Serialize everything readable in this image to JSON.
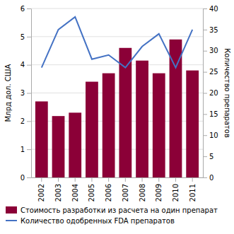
{
  "chart_data": {
    "type": "bar",
    "categories": [
      "2002",
      "2003",
      "2004",
      "2005",
      "2006",
      "2007",
      "2008",
      "2009",
      "2010",
      "2011"
    ],
    "series": [
      {
        "name": "Стоимость разработки из расчета на один препарат",
        "type": "bar",
        "color": "#8B0037",
        "values": [
          2.7,
          2.18,
          2.3,
          3.4,
          3.7,
          4.6,
          4.15,
          3.7,
          4.9,
          3.8
        ]
      },
      {
        "name": "Количество одобренных FDA препаратов",
        "type": "line",
        "color": "#4472C4",
        "axis": "y2",
        "values": [
          26,
          35,
          38,
          28,
          29,
          26,
          31,
          34,
          26,
          35
        ]
      }
    ],
    "ylabel": "Млрд дол. США",
    "y2label": "Количество препаратов",
    "ylim": [
      0,
      6
    ],
    "yticks": [
      0,
      1,
      2,
      3,
      4,
      5,
      6
    ],
    "y2lim": [
      0,
      40
    ],
    "y2ticks": [
      0,
      5,
      10,
      15,
      20,
      25,
      30,
      35,
      40
    ],
    "grid": true,
    "legend": "bottom"
  }
}
